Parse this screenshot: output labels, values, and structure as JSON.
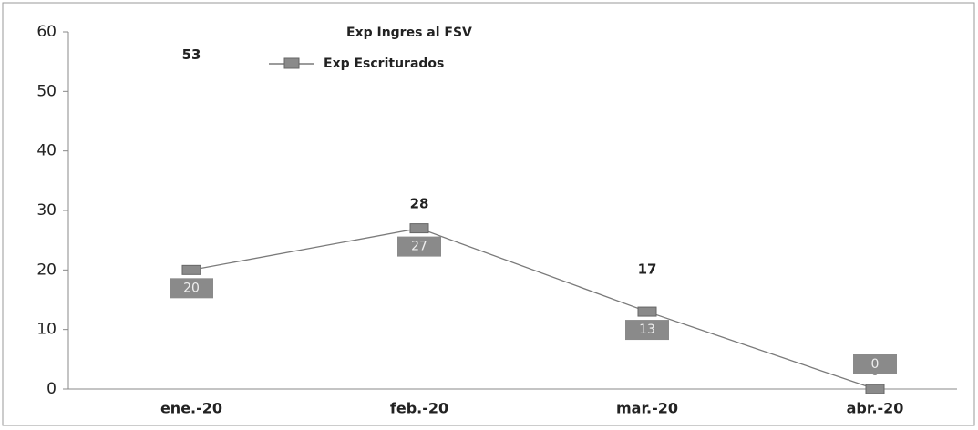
{
  "chart_data": {
    "type": "line",
    "categories": [
      "ene.-20",
      "feb.-20",
      "mar.-20",
      "abr.-20"
    ],
    "series": [
      {
        "name": "Exp Ingres al FSV",
        "color": "none",
        "values": [
          53,
          28,
          17,
          0
        ]
      },
      {
        "name": "Exp Escriturados",
        "color": "#7a7a7a",
        "values": [
          20,
          27,
          13,
          0
        ]
      }
    ],
    "ylim": [
      0,
      60
    ],
    "yticks": [
      0,
      10,
      20,
      30,
      40,
      50,
      60
    ],
    "grid": false
  }
}
